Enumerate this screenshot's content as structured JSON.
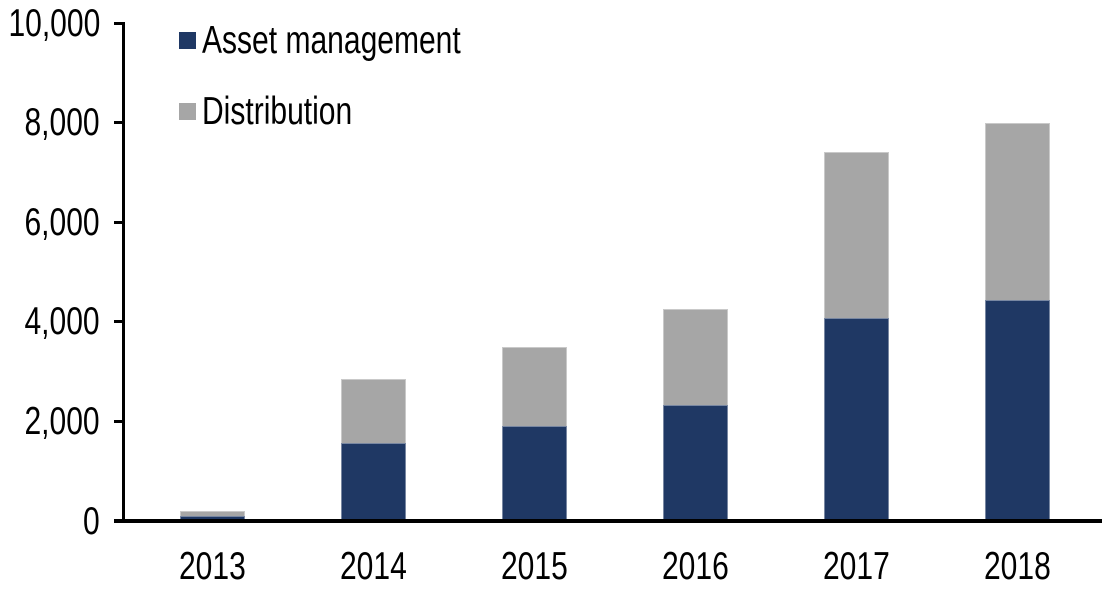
{
  "chart_data": {
    "type": "bar",
    "stacked": true,
    "title": "",
    "xlabel": "",
    "ylabel": "",
    "categories": [
      "2013",
      "2014",
      "2015",
      "2016",
      "2017",
      "2018"
    ],
    "series": [
      {
        "name": "Asset management",
        "color": "#1F3864",
        "values": [
          110,
          1560,
          1910,
          2330,
          4070,
          4440
        ]
      },
      {
        "name": "Distribution",
        "color": "#A6A6A6",
        "values": [
          90,
          1300,
          1590,
          1920,
          3330,
          3560
        ]
      }
    ],
    "totals": [
      200,
      2860,
      3500,
      4250,
      7400,
      8000
    ],
    "ylim": [
      0,
      10000
    ],
    "yticks": [
      0,
      2000,
      4000,
      6000,
      8000,
      10000
    ],
    "ytick_labels": [
      "0",
      "2,000",
      "4,000",
      "6,000",
      "8,000",
      "10,000"
    ],
    "grid": false,
    "legend_position": "top-left",
    "axis_color": "#000000",
    "text_color": "#000000",
    "background_color": "#FFFFFF"
  }
}
